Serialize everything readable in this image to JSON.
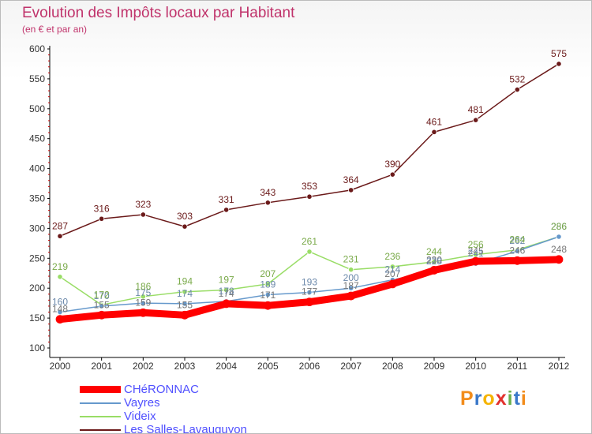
{
  "title": "Evolution des Impôts locaux par Habitant",
  "subtitle": "(en € et par an)",
  "logo": {
    "letters": [
      "P",
      "r",
      "o",
      "x",
      "i",
      "t",
      "i"
    ],
    "colors": [
      "#f28c1b",
      "#3a78c9",
      "#f5b400",
      "#e2312d",
      "#6ab04c",
      "#3a78c9",
      "#f28c1b"
    ]
  },
  "chart_data": {
    "type": "line",
    "title": "Evolution des Impôts locaux par Habitant",
    "subtitle": "(en € et par an)",
    "xlabel": "",
    "ylabel": "",
    "x": [
      "2000",
      "2001",
      "2002",
      "2003",
      "2004",
      "2005",
      "2006",
      "2007",
      "2008",
      "2009",
      "2010",
      "2011",
      "2012"
    ],
    "ylim": [
      100,
      600
    ],
    "yticks": [
      "100",
      "150",
      "200",
      "250",
      "300",
      "350",
      "400",
      "450",
      "500",
      "550",
      "600"
    ],
    "grid": false,
    "legend_position": "bottom-left",
    "series": [
      {
        "name": "CHéRONNAC",
        "color": "#ff0000",
        "values": [
          148,
          155,
          159,
          155,
          174,
          171,
          177,
          187,
          207,
          230,
          245,
          246,
          248
        ],
        "labels": [
          "148",
          "155",
          "159",
          "155",
          "174",
          "171",
          "177",
          "187",
          "207",
          "230",
          "245",
          "246",
          "248"
        ]
      },
      {
        "name": "Vayres",
        "color": "#6699cc",
        "values": [
          160,
          170,
          175,
          174,
          178,
          189,
          193,
          200,
          214,
          228,
          241,
          262,
          286
        ],
        "labels": [
          "160",
          "170",
          "175",
          "174",
          "178",
          "189",
          "193",
          "200",
          "214",
          "228",
          "241",
          "262",
          "286"
        ]
      },
      {
        "name": "Videix",
        "color": "#99dd66",
        "values": [
          219,
          172,
          186,
          194,
          197,
          207,
          261,
          231,
          236,
          244,
          256,
          264,
          286
        ],
        "labels": [
          "219",
          "172",
          "186",
          "194",
          "197",
          "207",
          "261",
          "231",
          "236",
          "244",
          "256",
          "264",
          "286"
        ]
      },
      {
        "name": "Les Salles-Lavauguyon",
        "color": "#6b1a1a",
        "values": [
          287,
          316,
          323,
          303,
          331,
          343,
          353,
          364,
          390,
          461,
          481,
          532,
          575
        ],
        "labels": [
          "287",
          "316",
          "323",
          "303",
          "331",
          "343",
          "353",
          "364",
          "390",
          "461",
          "481",
          "532",
          "575"
        ]
      }
    ]
  }
}
